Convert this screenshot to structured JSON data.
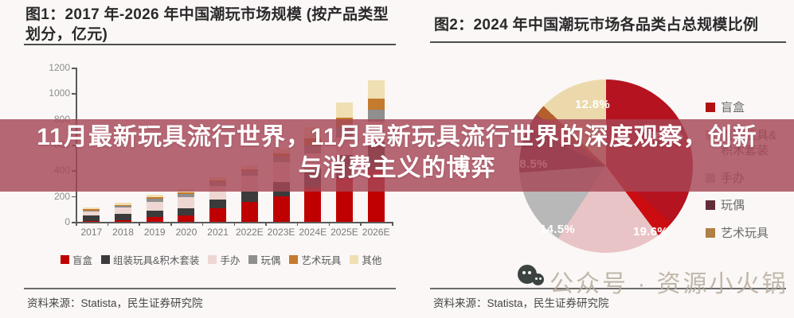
{
  "overlay": {
    "line1": "11月最新玩具流行世界，11月最新玩具流行世界的深度观察，创新",
    "line2": "与消费主义的博弈",
    "background": "#a74757",
    "text_color": "#ffffff"
  },
  "figure1": {
    "title": "图1：2017 年-2026 年中国潮玩市场规模 (按产品类型划分，亿元)",
    "source": "资料来源：Statista，民生证券研究院"
  },
  "figure2": {
    "title": "图2：2024 年中国潮玩市场各品类占总规模比例",
    "source": "资料来源：Statista，民生证券研究院"
  },
  "watermark": {
    "text": "公众号 · 资源小火锅",
    "icon": "wechat-icon"
  },
  "chart_data": [
    {
      "type": "bar",
      "stacked": true,
      "title": "图1：2017 年-2026 年中国潮玩市场规模 (按产品类型划分，亿元)",
      "categories": [
        "2017",
        "2018",
        "2019",
        "2020",
        "2021",
        "2022E",
        "2023E",
        "2024E",
        "2025E",
        "2026E"
      ],
      "series": [
        {
          "name": "盲盒",
          "color": "#c00000",
          "values": [
            5,
            15,
            35,
            52,
            105,
            152,
            200,
            269,
            339,
            401
          ]
        },
        {
          "name": "组装玩具&积木套装",
          "color": "#3b3b3b",
          "values": [
            42,
            48,
            52,
            55,
            68,
            84,
            110,
            145,
            182,
            216
          ]
        },
        {
          "name": "手办",
          "color": "#eed7d3",
          "values": [
            30,
            46,
            68,
            85,
            108,
            122,
            152,
            120,
            135,
            160
          ]
        },
        {
          "name": "玩偶",
          "color": "#8f8f8f",
          "values": [
            10,
            14,
            22,
            24,
            28,
            36,
            46,
            60,
            79,
            94
          ]
        },
        {
          "name": "艺术玩具",
          "color": "#c47b2e",
          "values": [
            8,
            9,
            14,
            14,
            14,
            17,
            23,
            55,
            76,
            90
          ]
        },
        {
          "name": "其他",
          "color": "#f0dfb2",
          "values": [
            13,
            14,
            19,
            21,
            22,
            27,
            37,
            90,
            119,
            140
          ]
        }
      ],
      "ylabel": "亿元",
      "ylim": [
        0,
        1200
      ],
      "yticks": [
        0,
        200,
        400,
        600,
        800,
        1000,
        1200
      ],
      "grid": false,
      "legend_position": "bottom"
    },
    {
      "type": "pie",
      "title": "图2：2024 年中国潮玩市场各品类占总规模比例",
      "slices": [
        {
          "label": "盲盒",
          "pct": 36.4,
          "color": "#b51320",
          "pct_label": "36.4%"
        },
        {
          "label": "",
          "pct": 3.3,
          "color": "#cb0c10",
          "pct_label": ""
        },
        {
          "label": "组装玩具&积木套装",
          "pct": 19.6,
          "color": "#e9c4c6",
          "pct_label": "19.6%"
        },
        {
          "label": "手办",
          "pct": 14.5,
          "color": "#b8b8b8",
          "pct_label": "14.5%"
        },
        {
          "label": "玩偶",
          "pct": 8.5,
          "color": "#662a38",
          "pct_label": "8.5%"
        },
        {
          "label": "",
          "pct": 2.9,
          "color": "#a2434a",
          "pct_label": ""
        },
        {
          "label": "艺术玩具",
          "pct": 2.0,
          "color": "#b45f2c",
          "pct_label": ""
        },
        {
          "label": "其他",
          "pct": 12.8,
          "color": "#ecd9ab",
          "pct_label": "12.8%"
        }
      ],
      "legend": [
        {
          "label": "盲盒",
          "color": "#b01212"
        },
        {
          "label": "组装玩具&积木套装",
          "color": "#e8bcbe"
        },
        {
          "label": "手办",
          "color": "#bfbfbf"
        },
        {
          "label": "玩偶",
          "color": "#632c38"
        },
        {
          "label": "艺术玩具",
          "color": "#b08045"
        }
      ],
      "legend_position": "right",
      "start_angle_deg": 0
    }
  ]
}
